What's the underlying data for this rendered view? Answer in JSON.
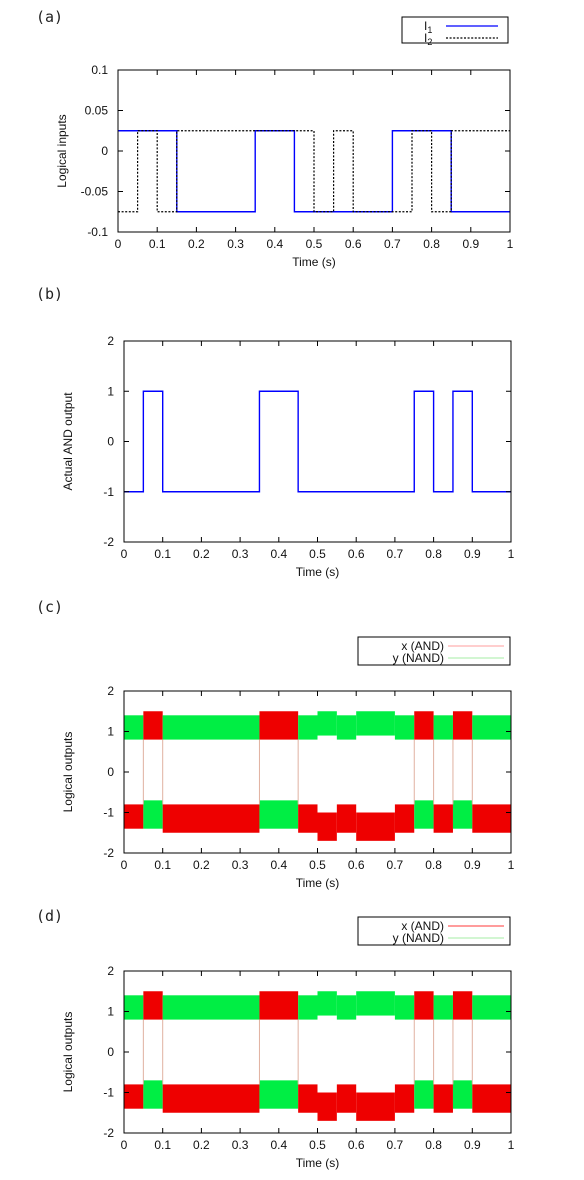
{
  "chart_data": [
    {
      "panel": "(a)",
      "type": "line",
      "xlabel": "Time (s)",
      "ylabel": "Logical inputs",
      "xlim": [
        0,
        1
      ],
      "ylim": [
        -0.1,
        0.1
      ],
      "xticks": [
        "0",
        "0.1",
        "0.2",
        "0.3",
        "0.4",
        "0.5",
        "0.6",
        "0.7",
        "0.8",
        "0.9",
        "1"
      ],
      "yticks": [
        "-0.1",
        "-0.05",
        "0",
        "0.05",
        "0.1"
      ],
      "legend_position": "top-right",
      "series": [
        {
          "name": "I",
          "name_subscript": "1",
          "color": "#0000ff",
          "style": "solid",
          "x": [
            0,
            0.15,
            0.15,
            0.35,
            0.35,
            0.45,
            0.45,
            0.7,
            0.7,
            0.85,
            0.85,
            1.0
          ],
          "y": [
            0.025,
            0.025,
            -0.075,
            -0.075,
            0.025,
            0.025,
            -0.075,
            -0.075,
            0.025,
            0.025,
            -0.075,
            -0.075
          ]
        },
        {
          "name": "I",
          "name_subscript": "2",
          "color": "#000000",
          "style": "dotted",
          "x": [
            0,
            0.05,
            0.05,
            0.1,
            0.1,
            0.15,
            0.15,
            0.35,
            0.35,
            0.5,
            0.5,
            0.55,
            0.55,
            0.6,
            0.6,
            0.75,
            0.75,
            0.8,
            0.8,
            0.85,
            0.85,
            1.0
          ],
          "y": [
            -0.075,
            -0.075,
            0.025,
            0.025,
            -0.075,
            -0.075,
            0.025,
            0.025,
            0.025,
            0.025,
            -0.075,
            -0.075,
            0.025,
            0.025,
            -0.075,
            -0.075,
            0.025,
            0.025,
            -0.075,
            -0.075,
            0.025,
            0.025
          ]
        }
      ]
    },
    {
      "panel": "(b)",
      "type": "line",
      "xlabel": "Time (s)",
      "ylabel": "Actual AND output",
      "xlim": [
        0,
        1
      ],
      "ylim": [
        -2,
        2
      ],
      "xticks": [
        "0",
        "0.1",
        "0.2",
        "0.3",
        "0.4",
        "0.5",
        "0.6",
        "0.7",
        "0.8",
        "0.9",
        "1"
      ],
      "yticks": [
        "-2",
        "-1",
        "0",
        "1",
        "2"
      ],
      "series": [
        {
          "color": "#0000ff",
          "style": "solid",
          "x": [
            0,
            0.05,
            0.05,
            0.1,
            0.1,
            0.35,
            0.35,
            0.45,
            0.45,
            0.75,
            0.75,
            0.8,
            0.8,
            0.85,
            0.85,
            0.9,
            0.9,
            1.0
          ],
          "y": [
            -1,
            -1,
            1,
            1,
            -1,
            -1,
            1,
            1,
            -1,
            -1,
            1,
            1,
            -1,
            -1,
            1,
            1,
            -1,
            -1
          ]
        }
      ]
    },
    {
      "panel": "(c)",
      "type": "area",
      "xlabel": "Time (s)",
      "ylabel": "Logical outputs",
      "xlim": [
        0,
        1
      ],
      "ylim": [
        -2,
        2
      ],
      "xticks": [
        "0",
        "0.1",
        "0.2",
        "0.3",
        "0.4",
        "0.5",
        "0.6",
        "0.7",
        "0.8",
        "0.9",
        "1"
      ],
      "yticks": [
        "-2",
        "-1",
        "0",
        "1",
        "2"
      ],
      "legend_position": "top-right",
      "legend": [
        {
          "label": "x (AND)",
          "color": "#ffb0b0"
        },
        {
          "label": "y (NAND)",
          "color": "#b8f0b8"
        }
      ],
      "bands": [
        {
          "x0": 0,
          "x1": 0.05,
          "upper": [
            0.8,
            1.4,
            "#00ee44"
          ],
          "lower": [
            -1.4,
            -0.8,
            "#ee0000"
          ]
        },
        {
          "x0": 0.05,
          "x1": 0.1,
          "upper": [
            0.8,
            1.5,
            "#ee0000"
          ],
          "lower": [
            -1.4,
            -0.7,
            "#00ee44"
          ]
        },
        {
          "x0": 0.1,
          "x1": 0.35,
          "upper": [
            0.8,
            1.4,
            "#00ee44"
          ],
          "lower": [
            -1.5,
            -0.8,
            "#ee0000"
          ]
        },
        {
          "x0": 0.35,
          "x1": 0.45,
          "upper": [
            0.8,
            1.5,
            "#ee0000"
          ],
          "lower": [
            -1.4,
            -0.7,
            "#00ee44"
          ]
        },
        {
          "x0": 0.45,
          "x1": 0.5,
          "upper": [
            0.8,
            1.4,
            "#00ee44"
          ],
          "lower": [
            -1.5,
            -0.8,
            "#ee0000"
          ]
        },
        {
          "x0": 0.5,
          "x1": 0.55,
          "upper": [
            0.9,
            1.5,
            "#00ee44"
          ],
          "lower": [
            -1.7,
            -1.0,
            "#ee0000"
          ]
        },
        {
          "x0": 0.55,
          "x1": 0.6,
          "upper": [
            0.8,
            1.4,
            "#00ee44"
          ],
          "lower": [
            -1.5,
            -0.8,
            "#ee0000"
          ]
        },
        {
          "x0": 0.6,
          "x1": 0.7,
          "upper": [
            0.9,
            1.5,
            "#00ee44"
          ],
          "lower": [
            -1.7,
            -1.0,
            "#ee0000"
          ]
        },
        {
          "x0": 0.7,
          "x1": 0.75,
          "upper": [
            0.8,
            1.4,
            "#00ee44"
          ],
          "lower": [
            -1.5,
            -0.8,
            "#ee0000"
          ]
        },
        {
          "x0": 0.75,
          "x1": 0.8,
          "upper": [
            0.8,
            1.5,
            "#ee0000"
          ],
          "lower": [
            -1.4,
            -0.7,
            "#00ee44"
          ]
        },
        {
          "x0": 0.8,
          "x1": 0.85,
          "upper": [
            0.8,
            1.4,
            "#00ee44"
          ],
          "lower": [
            -1.5,
            -0.8,
            "#ee0000"
          ]
        },
        {
          "x0": 0.85,
          "x1": 0.9,
          "upper": [
            0.8,
            1.5,
            "#ee0000"
          ],
          "lower": [
            -1.4,
            -0.7,
            "#00ee44"
          ]
        },
        {
          "x0": 0.9,
          "x1": 1.0,
          "upper": [
            0.8,
            1.4,
            "#00ee44"
          ],
          "lower": [
            -1.5,
            -0.8,
            "#ee0000"
          ]
        }
      ],
      "transitions": [
        0.05,
        0.1,
        0.35,
        0.45,
        0.75,
        0.8,
        0.85,
        0.9
      ]
    },
    {
      "panel": "(d)",
      "type": "area",
      "xlabel": "Time (s)",
      "ylabel": "Logical outputs",
      "xlim": [
        0,
        1
      ],
      "ylim": [
        -2,
        2
      ],
      "xticks": [
        "0",
        "0.1",
        "0.2",
        "0.3",
        "0.4",
        "0.5",
        "0.6",
        "0.7",
        "0.8",
        "0.9",
        "1"
      ],
      "yticks": [
        "-2",
        "-1",
        "0",
        "1",
        "2"
      ],
      "legend_position": "top-right",
      "legend": [
        {
          "label": "x (AND)",
          "color": "#ff6060"
        },
        {
          "label": "y (NAND)",
          "color": "#b8f0b8"
        }
      ],
      "bands": [
        {
          "x0": 0,
          "x1": 0.05,
          "upper": [
            0.8,
            1.4,
            "#00ee44"
          ],
          "lower": [
            -1.4,
            -0.8,
            "#ee0000"
          ]
        },
        {
          "x0": 0.05,
          "x1": 0.1,
          "upper": [
            0.8,
            1.5,
            "#ee0000"
          ],
          "lower": [
            -1.4,
            -0.7,
            "#00ee44"
          ]
        },
        {
          "x0": 0.1,
          "x1": 0.35,
          "upper": [
            0.8,
            1.4,
            "#00ee44"
          ],
          "lower": [
            -1.5,
            -0.8,
            "#ee0000"
          ]
        },
        {
          "x0": 0.35,
          "x1": 0.45,
          "upper": [
            0.8,
            1.5,
            "#ee0000"
          ],
          "lower": [
            -1.4,
            -0.7,
            "#00ee44"
          ]
        },
        {
          "x0": 0.45,
          "x1": 0.5,
          "upper": [
            0.8,
            1.4,
            "#00ee44"
          ],
          "lower": [
            -1.5,
            -0.8,
            "#ee0000"
          ]
        },
        {
          "x0": 0.5,
          "x1": 0.55,
          "upper": [
            0.9,
            1.5,
            "#00ee44"
          ],
          "lower": [
            -1.7,
            -1.0,
            "#ee0000"
          ]
        },
        {
          "x0": 0.55,
          "x1": 0.6,
          "upper": [
            0.8,
            1.4,
            "#00ee44"
          ],
          "lower": [
            -1.5,
            -0.8,
            "#ee0000"
          ]
        },
        {
          "x0": 0.6,
          "x1": 0.7,
          "upper": [
            0.9,
            1.5,
            "#00ee44"
          ],
          "lower": [
            -1.7,
            -1.0,
            "#ee0000"
          ]
        },
        {
          "x0": 0.7,
          "x1": 0.75,
          "upper": [
            0.8,
            1.4,
            "#00ee44"
          ],
          "lower": [
            -1.5,
            -0.8,
            "#ee0000"
          ]
        },
        {
          "x0": 0.75,
          "x1": 0.8,
          "upper": [
            0.8,
            1.5,
            "#ee0000"
          ],
          "lower": [
            -1.4,
            -0.7,
            "#00ee44"
          ]
        },
        {
          "x0": 0.8,
          "x1": 0.85,
          "upper": [
            0.8,
            1.4,
            "#00ee44"
          ],
          "lower": [
            -1.5,
            -0.8,
            "#ee0000"
          ]
        },
        {
          "x0": 0.85,
          "x1": 0.9,
          "upper": [
            0.8,
            1.5,
            "#ee0000"
          ],
          "lower": [
            -1.4,
            -0.7,
            "#00ee44"
          ]
        },
        {
          "x0": 0.9,
          "x1": 1.0,
          "upper": [
            0.8,
            1.4,
            "#00ee44"
          ],
          "lower": [
            -1.5,
            -0.8,
            "#ee0000"
          ]
        }
      ],
      "transitions": [
        0.05,
        0.1,
        0.35,
        0.45,
        0.75,
        0.8,
        0.85,
        0.9
      ]
    }
  ]
}
